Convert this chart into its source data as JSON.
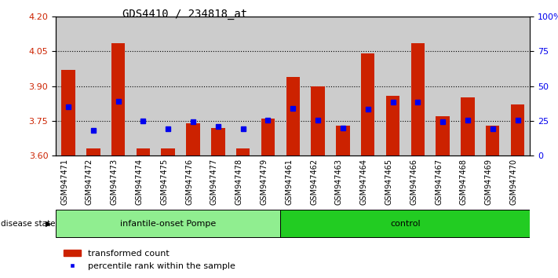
{
  "title": "GDS4410 / 234818_at",
  "samples": [
    "GSM947471",
    "GSM947472",
    "GSM947473",
    "GSM947474",
    "GSM947475",
    "GSM947476",
    "GSM947477",
    "GSM947478",
    "GSM947479",
    "GSM947461",
    "GSM947462",
    "GSM947463",
    "GSM947464",
    "GSM947465",
    "GSM947466",
    "GSM947467",
    "GSM947468",
    "GSM947469",
    "GSM947470"
  ],
  "red_values": [
    3.97,
    3.63,
    4.085,
    3.63,
    3.63,
    3.74,
    3.72,
    3.63,
    3.76,
    3.94,
    3.9,
    3.73,
    4.04,
    3.86,
    4.085,
    3.77,
    3.85,
    3.73,
    3.82
  ],
  "blue_values": [
    3.81,
    3.71,
    3.835,
    3.75,
    3.715,
    3.745,
    3.725,
    3.715,
    3.755,
    3.805,
    3.755,
    3.72,
    3.8,
    3.83,
    3.83,
    3.745,
    3.755,
    3.715,
    3.755
  ],
  "groups": [
    {
      "label": "infantile-onset Pompe",
      "start": 0,
      "end": 9,
      "color": "#90EE90"
    },
    {
      "label": "control",
      "start": 9,
      "end": 19,
      "color": "#22CC22"
    }
  ],
  "ylim": [
    3.6,
    4.2
  ],
  "y2lim": [
    0,
    100
  ],
  "yticks": [
    3.6,
    3.75,
    3.9,
    4.05,
    4.2
  ],
  "y2ticks": [
    0,
    25,
    50,
    75,
    100
  ],
  "bar_color": "#CC2200",
  "dot_color": "#0000EE",
  "cell_bg": "#CCCCCC",
  "plot_bg": "#FFFFFF",
  "legend_red": "transformed count",
  "legend_blue": "percentile rank within the sample",
  "disease_state_label": "disease state"
}
